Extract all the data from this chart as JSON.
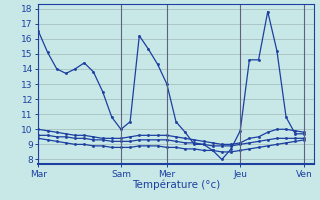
{
  "background_color": "#c8e8e8",
  "grid_color": "#a0b8b8",
  "line_color": "#1c3fa0",
  "vline_color": "#606080",
  "xlabel": "Température (°c)",
  "xtick_labels": [
    "Mar",
    "Sam",
    "Mer",
    "Jeu",
    "Ven"
  ],
  "xtick_positions": [
    0,
    9,
    14,
    22,
    29
  ],
  "ytick_min": 8,
  "ytick_max": 18,
  "xlim": [
    0,
    30
  ],
  "ylim": [
    7.7,
    18.3
  ],
  "series": [
    {
      "x": [
        0,
        1,
        2,
        3,
        4,
        5,
        6,
        7,
        8,
        9,
        10,
        11,
        12,
        13,
        14,
        15,
        16,
        17,
        18,
        19,
        20,
        21,
        22,
        23,
        24,
        25,
        26,
        27,
        28,
        29
      ],
      "y": [
        16.5,
        15.1,
        14.0,
        13.7,
        14.0,
        14.4,
        13.8,
        12.5,
        10.8,
        10.0,
        10.5,
        16.2,
        15.3,
        14.3,
        13.0,
        10.5,
        9.8,
        9.0,
        9.0,
        8.6,
        8.0,
        8.7,
        9.9,
        14.6,
        14.6,
        17.8,
        15.2,
        10.8,
        9.7,
        9.7
      ]
    },
    {
      "x": [
        0,
        1,
        2,
        3,
        4,
        5,
        6,
        7,
        8,
        9,
        10,
        11,
        12,
        13,
        14,
        15,
        16,
        17,
        18,
        19,
        20,
        21,
        22,
        23,
        24,
        25,
        26,
        27,
        28,
        29
      ],
      "y": [
        10.0,
        9.9,
        9.8,
        9.7,
        9.6,
        9.6,
        9.5,
        9.4,
        9.4,
        9.4,
        9.5,
        9.6,
        9.6,
        9.6,
        9.6,
        9.5,
        9.4,
        9.3,
        9.2,
        9.1,
        9.0,
        9.0,
        9.1,
        9.4,
        9.5,
        9.8,
        10.0,
        10.0,
        9.9,
        9.8
      ]
    },
    {
      "x": [
        0,
        1,
        2,
        3,
        4,
        5,
        6,
        7,
        8,
        9,
        10,
        11,
        12,
        13,
        14,
        15,
        16,
        17,
        18,
        19,
        20,
        21,
        22,
        23,
        24,
        25,
        26,
        27,
        28,
        29
      ],
      "y": [
        9.6,
        9.6,
        9.5,
        9.5,
        9.4,
        9.4,
        9.3,
        9.3,
        9.2,
        9.2,
        9.2,
        9.3,
        9.3,
        9.3,
        9.3,
        9.2,
        9.1,
        9.1,
        9.0,
        8.9,
        8.9,
        8.9,
        9.0,
        9.1,
        9.2,
        9.3,
        9.4,
        9.4,
        9.4,
        9.4
      ]
    },
    {
      "x": [
        0,
        1,
        2,
        3,
        4,
        5,
        6,
        7,
        8,
        9,
        10,
        11,
        12,
        13,
        14,
        15,
        16,
        17,
        18,
        19,
        20,
        21,
        22,
        23,
        24,
        25,
        26,
        27,
        28,
        29
      ],
      "y": [
        9.4,
        9.3,
        9.2,
        9.1,
        9.0,
        9.0,
        8.9,
        8.9,
        8.8,
        8.8,
        8.8,
        8.9,
        8.9,
        8.9,
        8.8,
        8.8,
        8.7,
        8.7,
        8.6,
        8.6,
        8.5,
        8.5,
        8.6,
        8.7,
        8.8,
        8.9,
        9.0,
        9.1,
        9.2,
        9.3
      ]
    }
  ]
}
